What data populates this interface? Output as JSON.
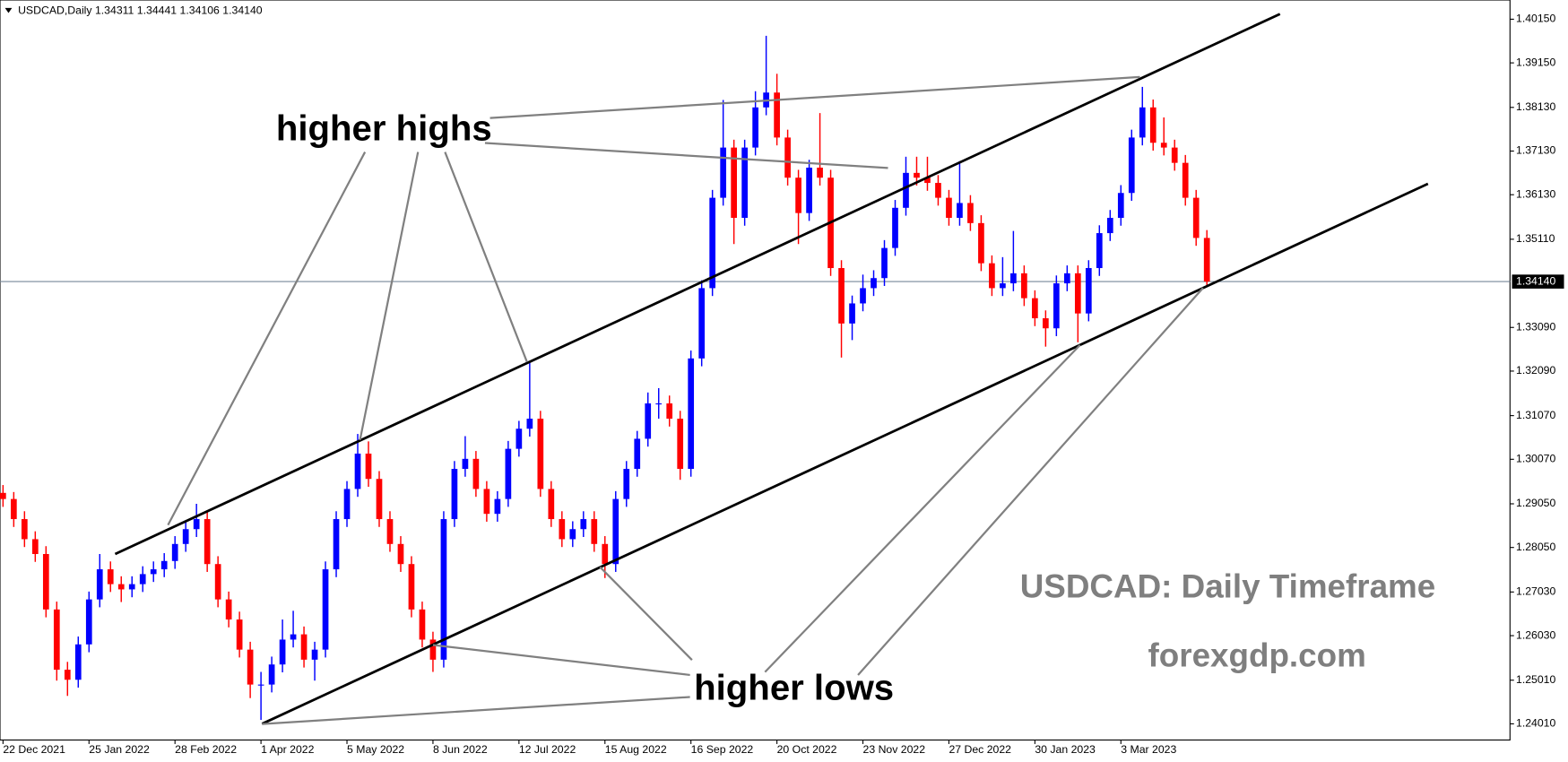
{
  "chart_data": {
    "type": "candlestick",
    "header": "USDCAD,Daily  1.34311 1.34441 1.34106 1.34140",
    "annotations": {
      "highs": "higher highs",
      "lows": "higher lows",
      "caption": "USDCAD: Daily Timeframe",
      "site": "forexgdp.com"
    },
    "up_color": "#0000ff",
    "down_color": "#ff0000",
    "trendline_color": "#000000",
    "price_line_color": "#778899",
    "xlim": [
      -0.84,
      420.6
    ],
    "ylim": [
      1.2364,
      1.4059
    ],
    "xticks": [
      {
        "value": 0,
        "label": "22 Dec 2021"
      },
      {
        "value": 24,
        "label": "25 Jan 2022"
      },
      {
        "value": 48,
        "label": "28 Feb 2022"
      },
      {
        "value": 72,
        "label": "1 Apr 2022"
      },
      {
        "value": 96,
        "label": "5 May 2022"
      },
      {
        "value": 120,
        "label": "8 Jun 2022"
      },
      {
        "value": 144,
        "label": "12 Jul 2022"
      },
      {
        "value": 168,
        "label": "15 Aug 2022"
      },
      {
        "value": 192,
        "label": "16 Sep 2022"
      },
      {
        "value": 216,
        "label": "20 Oct 2022"
      },
      {
        "value": 240,
        "label": "23 Nov 2022"
      },
      {
        "value": 264,
        "label": "27 Dec 2022"
      },
      {
        "value": 288,
        "label": "30 Jan 2023"
      },
      {
        "value": 312,
        "label": "3 Mar 2023"
      }
    ],
    "yticks": [
      {
        "value": 1.4015,
        "label": "1.40150"
      },
      {
        "value": 1.3915,
        "label": "1.39150"
      },
      {
        "value": 1.3813,
        "label": "1.38130"
      },
      {
        "value": 1.3713,
        "label": "1.37130"
      },
      {
        "value": 1.3613,
        "label": "1.36130"
      },
      {
        "value": 1.3511,
        "label": "1.35110"
      },
      {
        "value": 1.3309,
        "label": "1.33090"
      },
      {
        "value": 1.3209,
        "label": "1.32090"
      },
      {
        "value": 1.3107,
        "label": "1.31070"
      },
      {
        "value": 1.3007,
        "label": "1.30070"
      },
      {
        "value": 1.2905,
        "label": "1.29050"
      },
      {
        "value": 1.2805,
        "label": "1.28050"
      },
      {
        "value": 1.2703,
        "label": "1.27030"
      },
      {
        "value": 1.2603,
        "label": "1.26030"
      },
      {
        "value": 1.2501,
        "label": "1.25010"
      },
      {
        "value": 1.2401,
        "label": "1.24010"
      }
    ],
    "current_price": {
      "value": 1.3414,
      "label": "1.34140"
    },
    "trendlines": [
      {
        "x": [
          31.3,
          356.4
        ],
        "y": [
          1.279,
          1.4027
        ]
      },
      {
        "x": [
          72.3,
          397.7
        ],
        "y": [
          1.2401,
          1.3638
        ]
      }
    ],
    "x": [
      0,
      3,
      6,
      9,
      12,
      15,
      18,
      21,
      24,
      27,
      30,
      33,
      36,
      39,
      42,
      45,
      48,
      51,
      54,
      57,
      60,
      63,
      66,
      69,
      72,
      75,
      78,
      81,
      84,
      87,
      90,
      93,
      96,
      99,
      102,
      105,
      108,
      111,
      114,
      117,
      120,
      123,
      126,
      129,
      132,
      135,
      138,
      141,
      144,
      147,
      150,
      153,
      156,
      159,
      162,
      165,
      168,
      171,
      174,
      177,
      180,
      183,
      186,
      189,
      192,
      195,
      198,
      201,
      204,
      207,
      210,
      213,
      216,
      219,
      222,
      225,
      228,
      231,
      234,
      237,
      240,
      243,
      246,
      249,
      252,
      255,
      258,
      261,
      264,
      267,
      270,
      273,
      276,
      279,
      282,
      285,
      288,
      291,
      294,
      297,
      300,
      303,
      306,
      309,
      312,
      315,
      318,
      321,
      324,
      327,
      330,
      333,
      336
    ],
    "open": [
      1.293,
      1.2916,
      1.287,
      1.2824,
      1.279,
      1.2663,
      1.2525,
      1.2502,
      1.2583,
      1.2686,
      1.2755,
      1.2721,
      1.2709,
      1.2721,
      1.2744,
      1.2755,
      1.2774,
      1.2813,
      1.2847,
      1.287,
      1.2767,
      1.2686,
      1.264,
      1.2571,
      1.2491,
      1.2491,
      1.2537,
      1.2594,
      1.2606,
      1.2548,
      1.2571,
      1.2755,
      1.287,
      1.2939,
      1.302,
      1.2962,
      1.287,
      1.2813,
      1.2767,
      1.2663,
      1.2594,
      1.2548,
      1.287,
      1.2985,
      1.3008,
      1.2939,
      1.2882,
      1.2916,
      1.3031,
      1.3077,
      1.31,
      1.2939,
      1.287,
      1.2824,
      1.2847,
      1.287,
      1.2813,
      1.2767,
      1.2916,
      1.2985,
      1.3054,
      1.3135,
      1.3135,
      1.31,
      1.2985,
      1.3238,
      1.3399,
      1.3606,
      1.3721,
      1.356,
      1.3721,
      1.3813,
      1.3847,
      1.3744,
      1.3652,
      1.3571,
      1.3675,
      1.3652,
      1.3445,
      1.3318,
      1.3364,
      1.3399,
      1.3422,
      1.3491,
      1.3583,
      1.3663,
      1.3652,
      1.364,
      1.3606,
      1.356,
      1.3594,
      1.3548,
      1.3456,
      1.3399,
      1.341,
      1.3433,
      1.3376,
      1.333,
      1.3307,
      1.341,
      1.3433,
      1.3341,
      1.3445,
      1.3525,
      1.356,
      1.3617,
      1.3744,
      1.3813,
      1.3732,
      1.3721,
      1.3686,
      1.3606,
      1.3514
    ],
    "high": [
      1.2948,
      1.2932,
      1.2888,
      1.2842,
      1.2808,
      1.2681,
      1.2543,
      1.2601,
      1.2704,
      1.279,
      1.2773,
      1.2739,
      1.2739,
      1.2762,
      1.2773,
      1.2792,
      1.2831,
      1.2865,
      1.2905,
      1.2888,
      1.2785,
      1.2704,
      1.2658,
      1.2589,
      1.252,
      1.2555,
      1.264,
      1.266,
      1.2624,
      1.2589,
      1.2773,
      1.2888,
      1.2957,
      1.3065,
      1.3048,
      1.298,
      1.2888,
      1.2831,
      1.2785,
      1.2681,
      1.2612,
      1.2888,
      1.3003,
      1.306,
      1.3026,
      1.2957,
      1.2934,
      1.3049,
      1.3095,
      1.3228,
      1.3118,
      1.2957,
      1.2888,
      1.2865,
      1.2888,
      1.2888,
      1.2831,
      1.2934,
      1.3003,
      1.3072,
      1.316,
      1.317,
      1.3153,
      1.3118,
      1.3256,
      1.3417,
      1.3624,
      1.383,
      1.3739,
      1.3739,
      1.385,
      1.3977,
      1.389,
      1.3762,
      1.367,
      1.3693,
      1.38,
      1.367,
      1.3463,
      1.3382,
      1.343,
      1.344,
      1.3509,
      1.3601,
      1.37,
      1.37,
      1.37,
      1.3658,
      1.3624,
      1.369,
      1.3612,
      1.3566,
      1.3474,
      1.347,
      1.353,
      1.3451,
      1.3394,
      1.3348,
      1.3428,
      1.3451,
      1.3451,
      1.3463,
      1.3543,
      1.3578,
      1.3635,
      1.3762,
      1.386,
      1.3831,
      1.379,
      1.3739,
      1.3704,
      1.3624,
      1.3532
    ],
    "low": [
      1.2898,
      1.2852,
      1.2806,
      1.2772,
      1.2645,
      1.25,
      1.2465,
      1.2484,
      1.2565,
      1.2668,
      1.2703,
      1.268,
      1.2691,
      1.2703,
      1.2726,
      1.2737,
      1.2756,
      1.2795,
      1.2829,
      1.2749,
      1.2668,
      1.2622,
      1.2553,
      1.246,
      1.241,
      1.2473,
      1.2519,
      1.2576,
      1.253,
      1.25,
      1.2553,
      1.2737,
      1.2852,
      1.2921,
      1.2944,
      1.2852,
      1.2795,
      1.2749,
      1.2645,
      1.2576,
      1.252,
      1.253,
      1.2852,
      1.2967,
      1.2921,
      1.2864,
      1.2864,
      1.2898,
      1.3013,
      1.3059,
      1.2921,
      1.2852,
      1.2806,
      1.2806,
      1.2829,
      1.2795,
      1.2735,
      1.2749,
      1.2898,
      1.2967,
      1.3036,
      1.31,
      1.3082,
      1.296,
      1.2967,
      1.322,
      1.3381,
      1.3588,
      1.35,
      1.3542,
      1.3703,
      1.3795,
      1.3726,
      1.3634,
      1.35,
      1.3553,
      1.3634,
      1.3427,
      1.324,
      1.328,
      1.3346,
      1.3381,
      1.3404,
      1.3473,
      1.3565,
      1.3634,
      1.3622,
      1.3588,
      1.3542,
      1.3542,
      1.353,
      1.3438,
      1.3381,
      1.3381,
      1.3392,
      1.3358,
      1.3312,
      1.3265,
      1.3289,
      1.3392,
      1.3275,
      1.3323,
      1.3427,
      1.3507,
      1.3542,
      1.3599,
      1.3726,
      1.3714,
      1.3703,
      1.3668,
      1.3588,
      1.3496,
      1.3405
    ],
    "close": [
      1.2916,
      1.287,
      1.2824,
      1.279,
      1.2663,
      1.2525,
      1.2502,
      1.2583,
      1.2686,
      1.2755,
      1.2721,
      1.2709,
      1.2721,
      1.2744,
      1.2755,
      1.2774,
      1.2813,
      1.2847,
      1.287,
      1.2767,
      1.2686,
      1.264,
      1.2571,
      1.2491,
      1.2491,
      1.2537,
      1.2594,
      1.2606,
      1.2548,
      1.2571,
      1.2755,
      1.287,
      1.2939,
      1.302,
      1.2962,
      1.287,
      1.2813,
      1.2767,
      1.2663,
      1.2594,
      1.2548,
      1.287,
      1.2985,
      1.3008,
      1.2939,
      1.2882,
      1.2916,
      1.3031,
      1.3077,
      1.31,
      1.2939,
      1.287,
      1.2824,
      1.2847,
      1.287,
      1.2813,
      1.2767,
      1.2916,
      1.2985,
      1.3054,
      1.3135,
      1.3135,
      1.31,
      1.2985,
      1.3238,
      1.3399,
      1.3606,
      1.3721,
      1.356,
      1.3721,
      1.3813,
      1.3847,
      1.3744,
      1.3652,
      1.3571,
      1.3675,
      1.3652,
      1.3445,
      1.3318,
      1.3364,
      1.3399,
      1.3422,
      1.3491,
      1.3583,
      1.3663,
      1.3652,
      1.364,
      1.3606,
      1.356,
      1.3594,
      1.3548,
      1.3456,
      1.3399,
      1.341,
      1.3433,
      1.3376,
      1.333,
      1.3307,
      1.341,
      1.3433,
      1.3341,
      1.3445,
      1.3525,
      1.356,
      1.3617,
      1.3744,
      1.3813,
      1.3732,
      1.3721,
      1.3686,
      1.3606,
      1.3514,
      1.3414
    ]
  }
}
